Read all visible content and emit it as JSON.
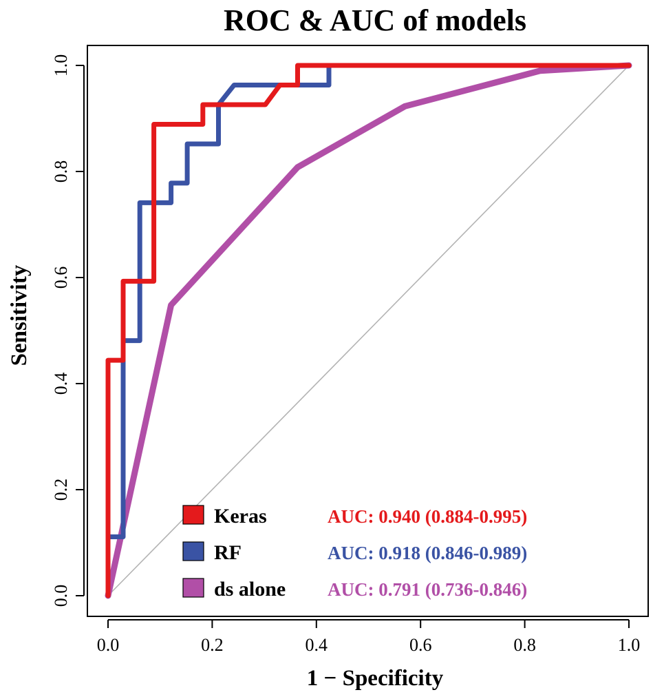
{
  "chart_data": {
    "type": "line",
    "title": "ROC & AUC of models",
    "xlabel": "1 − Specificity",
    "ylabel": "Sensitivity",
    "xlim": [
      0,
      1
    ],
    "ylim": [
      0,
      1
    ],
    "x_ticks": [
      "0.0",
      "0.2",
      "0.4",
      "0.6",
      "0.8",
      "1.0"
    ],
    "y_ticks": [
      "0.0",
      "0.2",
      "0.4",
      "0.6",
      "0.8",
      "1.0"
    ],
    "grid": false,
    "reference_line": "diagonal",
    "legend_position": "bottom-right",
    "series": [
      {
        "name": "Keras",
        "color": "#e41a1c",
        "auc_label": "AUC: 0.940 (0.884-0.995)",
        "points": [
          [
            0,
            0
          ],
          [
            0,
            0.111
          ],
          [
            0,
            0.444
          ],
          [
            0.029,
            0.444
          ],
          [
            0.029,
            0.593
          ],
          [
            0.088,
            0.593
          ],
          [
            0.088,
            0.704
          ],
          [
            0.088,
            0.889
          ],
          [
            0.182,
            0.889
          ],
          [
            0.182,
            0.926
          ],
          [
            0.302,
            0.926
          ],
          [
            0.33,
            0.963
          ],
          [
            0.364,
            0.963
          ],
          [
            0.364,
            1.0
          ],
          [
            1.0,
            1.0
          ]
        ]
      },
      {
        "name": "RF",
        "color": "#3a53a4",
        "auc_label": "AUC: 0.918 (0.846-0.989)",
        "points": [
          [
            0,
            0
          ],
          [
            0,
            0.111
          ],
          [
            0.029,
            0.111
          ],
          [
            0.029,
            0.481
          ],
          [
            0.061,
            0.481
          ],
          [
            0.061,
            0.741
          ],
          [
            0.121,
            0.741
          ],
          [
            0.121,
            0.778
          ],
          [
            0.152,
            0.778
          ],
          [
            0.152,
            0.852
          ],
          [
            0.212,
            0.852
          ],
          [
            0.212,
            0.926
          ],
          [
            0.242,
            0.963
          ],
          [
            0.424,
            0.963
          ],
          [
            0.424,
            1.0
          ],
          [
            1.0,
            1.0
          ]
        ]
      },
      {
        "name": "ds alone",
        "color": "#b14fa7",
        "auc_label": "AUC: 0.791 (0.736-0.846)",
        "points": [
          [
            0,
            0
          ],
          [
            0.121,
            0.548
          ],
          [
            0.364,
            0.808
          ],
          [
            0.57,
            0.923
          ],
          [
            0.83,
            0.99
          ],
          [
            1.0,
            1.0
          ]
        ]
      }
    ]
  }
}
